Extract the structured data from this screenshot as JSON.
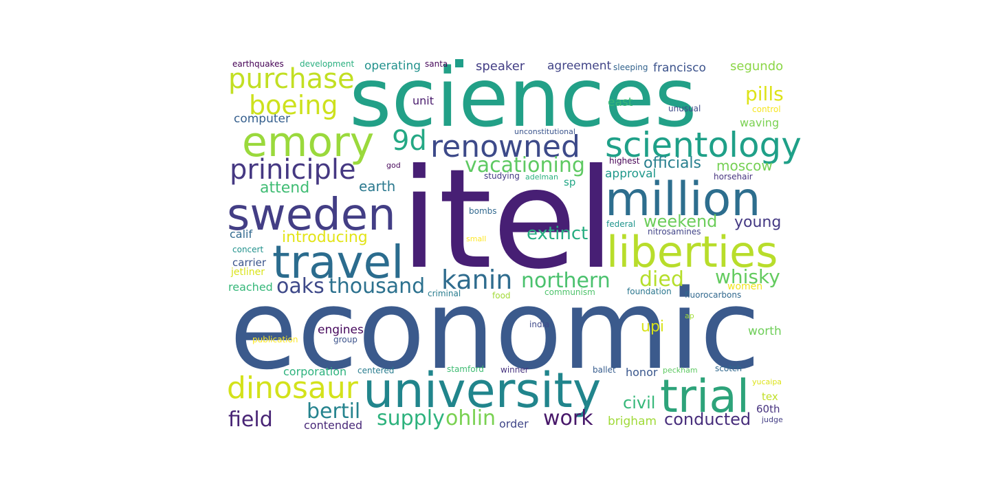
{
  "words": [
    {
      "text": "itel",
      "color": "#471f74"
    },
    {
      "text": "economic",
      "color": "#3b5a8c"
    },
    {
      "text": "sciences",
      "color": "#22a087"
    },
    {
      "text": "university",
      "color": "#21858c"
    },
    {
      "text": "million",
      "color": "#2d6e8e"
    },
    {
      "text": "liberties",
      "color": "#b8dd2b"
    },
    {
      "text": "sweden",
      "color": "#433e85"
    },
    {
      "text": "travel",
      "color": "#2b6c8e"
    },
    {
      "text": "trial",
      "color": "#2da37a"
    },
    {
      "text": "emory",
      "color": "#9ad93c"
    },
    {
      "text": "scientology",
      "color": "#1fa088"
    },
    {
      "text": "renowned",
      "color": "#3d4a89"
    },
    {
      "text": "dinosaur",
      "color": "#d3e21b"
    },
    {
      "text": "priniciple",
      "color": "#453882"
    },
    {
      "text": "purchase",
      "color": "#c2df23"
    },
    {
      "text": "boeing",
      "color": "#cde11d"
    },
    {
      "text": "kanin",
      "color": "#2f6c8e"
    },
    {
      "text": "9d",
      "color": "#24a884"
    },
    {
      "text": "northern",
      "color": "#4ac16d"
    },
    {
      "text": "vacationing",
      "color": "#5ec962"
    },
    {
      "text": "thousand",
      "color": "#2c718e"
    },
    {
      "text": "bertil",
      "color": "#25838e"
    },
    {
      "text": "work",
      "color": "#48186a"
    },
    {
      "text": "whisky",
      "color": "#63cb5f"
    },
    {
      "text": "died",
      "color": "#b5de2b"
    },
    {
      "text": "oaks",
      "color": "#3e4989"
    },
    {
      "text": "supply",
      "color": "#2db27d"
    },
    {
      "text": "ohlin",
      "color": "#79d151"
    },
    {
      "text": "field",
      "color": "#482475"
    },
    {
      "text": "conducted",
      "color": "#472d7b"
    },
    {
      "text": "extinct",
      "color": "#27ad81"
    },
    {
      "text": "pills",
      "color": "#dde318"
    },
    {
      "text": "weekend",
      "color": "#6ccd5a"
    },
    {
      "text": "young",
      "color": "#443983"
    },
    {
      "text": "officials",
      "color": "#277f8e"
    },
    {
      "text": "moscow",
      "color": "#75d054"
    },
    {
      "text": "introducing",
      "color": "#e2e418"
    },
    {
      "text": "earth",
      "color": "#2a788e"
    },
    {
      "text": "civil",
      "color": "#35b779"
    },
    {
      "text": "attend",
      "color": "#3fbc73"
    },
    {
      "text": "upi",
      "color": "#d8e219"
    },
    {
      "text": "segundo",
      "color": "#8bd646"
    },
    {
      "text": "speaker",
      "color": "#433e85"
    },
    {
      "text": "francisco",
      "color": "#3b528b"
    },
    {
      "text": "agreement",
      "color": "#414487"
    },
    {
      "text": "operating",
      "color": "#21918c"
    },
    {
      "text": "computer",
      "color": "#355f8d"
    },
    {
      "text": "east",
      "color": "#38b977"
    },
    {
      "text": "waving",
      "color": "#7ad151"
    },
    {
      "text": "approval",
      "color": "#1f988b"
    },
    {
      "text": "calif",
      "color": "#31688e"
    },
    {
      "text": "sp",
      "color": "#21a685"
    },
    {
      "text": "carrier",
      "color": "#3a538b"
    },
    {
      "text": "reached",
      "color": "#35b779"
    },
    {
      "text": "engines",
      "color": "#46085c"
    },
    {
      "text": "corporation",
      "color": "#2db27d"
    },
    {
      "text": "brigham",
      "color": "#a0da39"
    },
    {
      "text": "worth",
      "color": "#6ece58"
    },
    {
      "text": "contended",
      "color": "#482878"
    },
    {
      "text": "order",
      "color": "#404688"
    },
    {
      "text": "60th",
      "color": "#46327e"
    },
    {
      "text": "honor",
      "color": "#39568c"
    },
    {
      "text": "tex",
      "color": "#c0df25"
    },
    {
      "text": "unit",
      "color": "#481a6c"
    },
    {
      "text": "jetliner",
      "color": "#dae319"
    },
    {
      "text": "women",
      "color": "#f1e51d"
    },
    {
      "text": "earthquakes",
      "color": "#440154"
    },
    {
      "text": "development",
      "color": "#29af7f"
    },
    {
      "text": "santa",
      "color": "#46075a"
    },
    {
      "text": "sleeping",
      "color": "#33638d"
    },
    {
      "text": "control",
      "color": "#f6e620"
    },
    {
      "text": "unusual",
      "color": "#3e4a89"
    },
    {
      "text": "unconstitutional",
      "color": "#3a548c"
    },
    {
      "text": "god",
      "color": "#46075a"
    },
    {
      "text": "highest",
      "color": "#440154"
    },
    {
      "text": "studying",
      "color": "#443a83"
    },
    {
      "text": "adelman",
      "color": "#2bb07f"
    },
    {
      "text": "horsehair",
      "color": "#46337f"
    },
    {
      "text": "bombs",
      "color": "#31688e"
    },
    {
      "text": "federal",
      "color": "#1f948c"
    },
    {
      "text": "small",
      "color": "#fde725"
    },
    {
      "text": "nitrosamines",
      "color": "#414487"
    },
    {
      "text": "concert",
      "color": "#21918c"
    },
    {
      "text": "criminal",
      "color": "#287c8e"
    },
    {
      "text": "food",
      "color": "#a2da37"
    },
    {
      "text": "communism",
      "color": "#4ec36b"
    },
    {
      "text": "foundation",
      "color": "#2a768e"
    },
    {
      "text": "fluorocarbons",
      "color": "#31688e"
    },
    {
      "text": "ap",
      "color": "#a0da39"
    },
    {
      "text": "india",
      "color": "#3e4989"
    },
    {
      "text": "publication",
      "color": "#fde725"
    },
    {
      "text": "group",
      "color": "#3b528b"
    },
    {
      "text": "stamford",
      "color": "#3fbc73"
    },
    {
      "text": "winner",
      "color": "#46327e"
    },
    {
      "text": "centered",
      "color": "#287c8e"
    },
    {
      "text": "ballet",
      "color": "#365c8d"
    },
    {
      "text": "peckham",
      "color": "#5ec962"
    },
    {
      "text": "scotch",
      "color": "#31688e"
    },
    {
      "text": "yucaipa",
      "color": "#dde318"
    },
    {
      "text": "judge",
      "color": "#433e85"
    }
  ]
}
